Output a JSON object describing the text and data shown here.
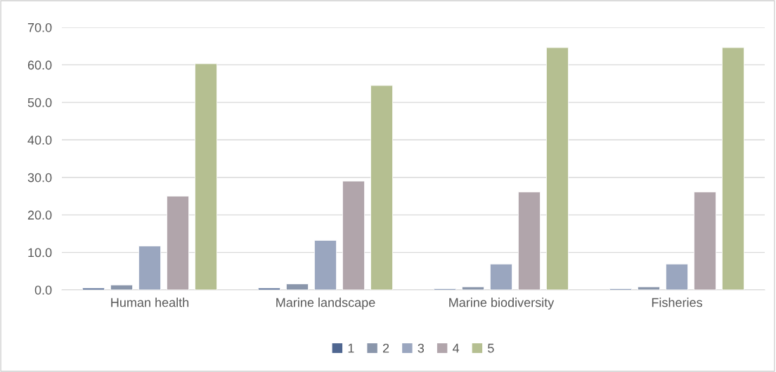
{
  "chart_data": {
    "type": "bar",
    "categories": [
      "Human health",
      "Marine landscape",
      "Marine biodiversity",
      "Fisheries"
    ],
    "series": [
      {
        "name": "1",
        "color": "#4f6690",
        "values": [
          0.5,
          0.5,
          0.3,
          0.3
        ]
      },
      {
        "name": "2",
        "color": "#8a96ab",
        "values": [
          1.3,
          1.6,
          0.8,
          0.8
        ]
      },
      {
        "name": "3",
        "color": "#9aa6bf",
        "values": [
          11.7,
          13.2,
          6.9,
          6.9
        ]
      },
      {
        "name": "4",
        "color": "#b1a5ab",
        "values": [
          25.0,
          29.0,
          26.1,
          26.1
        ]
      },
      {
        "name": "5",
        "color": "#b5bf91",
        "values": [
          60.3,
          54.5,
          64.6,
          64.6
        ]
      }
    ],
    "ylim": [
      0,
      70
    ],
    "yticks": [
      {
        "value": 0,
        "label": "0.0"
      },
      {
        "value": 10,
        "label": "10.0"
      },
      {
        "value": 20,
        "label": "20.0"
      },
      {
        "value": 30,
        "label": "30.0"
      },
      {
        "value": 40,
        "label": "40.0"
      },
      {
        "value": 50,
        "label": "50.0"
      },
      {
        "value": 60,
        "label": "60.0"
      },
      {
        "value": 70,
        "label": "70.0"
      }
    ],
    "grid": "y",
    "legend": "bottom"
  }
}
